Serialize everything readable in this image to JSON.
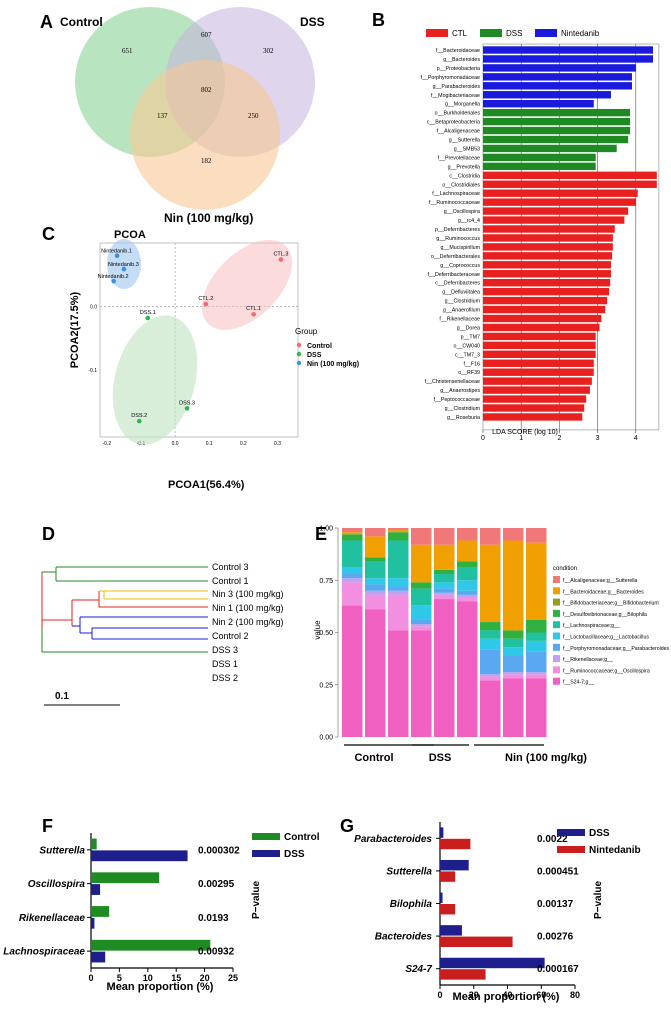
{
  "colors": {
    "ctl": "#e8201f",
    "dss": "#1f8a24",
    "nin": "#1a1adc",
    "ven_control": "#7ed08a",
    "ven_dss": "#c4b2dc",
    "ven_nin": "#f9c894",
    "pcoa_ctl": "#f26b6b",
    "pcoa_dss": "#2bb84a",
    "pcoa_nin": "#3a8fe8",
    "f_green": "#1e8c22",
    "f_navy": "#1e1e8c",
    "g_navy": "#1e1e8c",
    "g_red": "#c81e1e"
  },
  "panels": {
    "a": "A",
    "b": "B",
    "c": "C",
    "d": "D",
    "e": "E",
    "f": "F",
    "g": "G"
  },
  "chart_data": [
    {
      "type": "venn",
      "panel": "A",
      "sets": [
        "Control",
        "DSS",
        "Nin  (100 mg/kg)"
      ],
      "regions": {
        "control_only": "651",
        "control_dss": "607",
        "dss_only": "302",
        "all_three": "802",
        "control_nin": "137",
        "dss_nin": "250",
        "nin_only": "182"
      }
    },
    {
      "type": "bar",
      "panel": "B",
      "orientation": "horizontal",
      "legend": [
        "CTL",
        "DSS",
        "Nintedanib"
      ],
      "xlabel": "LDA SCORE (log 10)",
      "xlim": [
        0,
        4.5
      ],
      "xticks": [
        "0",
        "1",
        "2",
        "3",
        "4"
      ],
      "categories": [
        "f__Bacteroidaceae",
        "g__Bacteroides",
        "p__Proteobacteria",
        "f__Porphyromonadaceae",
        "g__Parabacteroides",
        "f__Mogibacteriaceae",
        "g__Morganella",
        "o__Burkholderiales",
        "c__Betaproteobacteria",
        "f__Alcaligenaceae",
        "g__Sutterella",
        "g__SMB53",
        "f__Prevotellaceae",
        "g__Prevotella",
        "c__Clostridia",
        "o__Clostridiales",
        "f__Lachnospiraceae",
        "f__Ruminococcaceae",
        "g__Oscillospira",
        "g__rc4_4",
        "p__Deferribacteres",
        "g__Ruminococcus",
        "g__Mucispirillum",
        "o__Deferribacterales",
        "g__Coprococcus",
        "f__Deferribacteraceae",
        "c__Deferribacteres",
        "g__Defluviitalea",
        "g__Clostridium",
        "g__Anaerofilum",
        "f__Rikenellaceae",
        "g__Dorea",
        "p__TM7",
        "o__CW040",
        "c__TM7_3",
        "f__F16",
        "o__RF39",
        "f__Christensenellaceae",
        "g__Anaerostipes",
        "f__Peptococcaceae",
        "g__Clostridium",
        "g__Roseburia"
      ],
      "values": [
        4.45,
        4.45,
        4.0,
        3.9,
        3.9,
        3.35,
        2.9,
        3.85,
        3.85,
        3.85,
        3.8,
        3.5,
        2.95,
        2.95,
        4.55,
        4.55,
        4.05,
        4.0,
        3.8,
        3.7,
        3.45,
        3.4,
        3.4,
        3.38,
        3.35,
        3.35,
        3.33,
        3.3,
        3.25,
        3.2,
        3.1,
        3.05,
        2.95,
        2.95,
        2.95,
        2.9,
        2.9,
        2.85,
        2.8,
        2.7,
        2.65,
        2.6
      ],
      "groups": [
        "Nintedanib",
        "Nintedanib",
        "Nintedanib",
        "Nintedanib",
        "Nintedanib",
        "Nintedanib",
        "Nintedanib",
        "DSS",
        "DSS",
        "DSS",
        "DSS",
        "DSS",
        "DSS",
        "DSS",
        "CTL",
        "CTL",
        "CTL",
        "CTL",
        "CTL",
        "CTL",
        "CTL",
        "CTL",
        "CTL",
        "CTL",
        "CTL",
        "CTL",
        "CTL",
        "CTL",
        "CTL",
        "CTL",
        "CTL",
        "CTL",
        "CTL",
        "CTL",
        "CTL",
        "CTL",
        "CTL",
        "CTL",
        "CTL",
        "CTL",
        "CTL",
        "CTL"
      ]
    },
    {
      "type": "scatter",
      "panel": "C",
      "title": "PCOA",
      "xlabel": "PCOA1(56.4%)",
      "ylabel": "PCOA2(17.5%)",
      "xlim": [
        -0.22,
        0.36
      ],
      "ylim": [
        -0.205,
        0.1
      ],
      "xticks": [
        -0.2,
        -0.1,
        0.0,
        0.1,
        0.2,
        0.3
      ],
      "xtick_labels": [
        "-0.2",
        "-0.1",
        "0.0",
        "0.1",
        "0.2",
        "0.3"
      ],
      "yticks": [
        0.0,
        -0.1
      ],
      "ytick_labels": [
        "0.0",
        "-0.1"
      ],
      "legend_title": "Group",
      "legend": [
        "Control",
        "DSS",
        "Nin  (100 mg/kg)"
      ],
      "points": [
        {
          "label": "CTL.3",
          "group": "Control",
          "x": 0.31,
          "y": 0.074
        },
        {
          "label": "CTL.2",
          "group": "Control",
          "x": 0.09,
          "y": 0.004
        },
        {
          "label": "CTL.1",
          "group": "Control",
          "x": 0.23,
          "y": -0.012
        },
        {
          "label": "DSS.1",
          "group": "DSS",
          "x": -0.08,
          "y": -0.018
        },
        {
          "label": "DSS.3",
          "group": "DSS",
          "x": 0.035,
          "y": -0.16
        },
        {
          "label": "DSS.2",
          "group": "DSS",
          "x": -0.105,
          "y": -0.18
        },
        {
          "label": "Nintedanib.1",
          "group": "Nin",
          "x": -0.17,
          "y": 0.08
        },
        {
          "label": "Nintedanib.3",
          "group": "Nin",
          "x": -0.15,
          "y": 0.059
        },
        {
          "label": "Nintedanib.2",
          "group": "Nin",
          "x": -0.18,
          "y": 0.04
        }
      ]
    },
    {
      "type": "dendrogram",
      "panel": "D",
      "leaves": [
        "Control 3",
        "Control 1",
        "Nin 3 (100 mg/kg)",
        "Nin 1 (100 mg/kg)",
        "Nin 2 (100 mg/kg)",
        "Control 2",
        "DSS 3",
        "DSS 1",
        "DSS 2"
      ],
      "scale_label": "0.1"
    },
    {
      "type": "stacked-bar",
      "panel": "E",
      "ylabel": "value",
      "yticks": [
        "0.00",
        "0.25",
        "0.50",
        "0.75",
        "1.00"
      ],
      "group_labels": [
        "Control",
        "DSS",
        "Nin (100 mg/kg)"
      ],
      "legend_title": "condition",
      "series": [
        {
          "name": "f__S24-7;g__",
          "color": "#f060c0",
          "values": [
            0.63,
            0.61,
            0.51,
            0.51,
            0.66,
            0.65,
            0.27,
            0.28,
            0.28
          ]
        },
        {
          "name": "f__Ruminococcaceae;g__Oscillospira",
          "color": "#f28fe0",
          "values": [
            0.11,
            0.07,
            0.17,
            0.02,
            0.02,
            0.02,
            0.02,
            0.02,
            0.02
          ]
        },
        {
          "name": "f__Rikenellaceae;g__",
          "color": "#c49ef0",
          "values": [
            0.02,
            0.02,
            0.02,
            0.01,
            0.01,
            0.01,
            0.01,
            0.01,
            0.01
          ]
        },
        {
          "name": "f__Porphyromonadaceae;g__Parabacteroides",
          "color": "#5aa8f0",
          "values": [
            0.02,
            0.03,
            0.02,
            0.02,
            0.02,
            0.02,
            0.12,
            0.08,
            0.1
          ]
        },
        {
          "name": "f__Lactobacillaceae;g__Lactobacillus",
          "color": "#30c8e8",
          "values": [
            0.03,
            0.03,
            0.04,
            0.07,
            0.03,
            0.05,
            0.05,
            0.04,
            0.05
          ]
        },
        {
          "name": "f__Lachnospiraceae;g__",
          "color": "#20c0a0",
          "values": [
            0.13,
            0.08,
            0.18,
            0.08,
            0.04,
            0.06,
            0.04,
            0.04,
            0.04
          ]
        },
        {
          "name": "f__Desulfovibrionaceae;g__Bilophila",
          "color": "#30b040",
          "values": [
            0.03,
            0.02,
            0.04,
            0.03,
            0.02,
            0.03,
            0.04,
            0.04,
            0.06
          ]
        },
        {
          "name": "f__Bifidobacteriaceae;g__Bifidobacterium",
          "color": "#90a020",
          "values": [
            0.0,
            0.0,
            0.0,
            0.0,
            0.0,
            0.0,
            0.0,
            0.0,
            0.0
          ]
        },
        {
          "name": "f__Bacteroidaceae;g__Bacteroides",
          "color": "#f0a000",
          "values": [
            0.01,
            0.1,
            0.01,
            0.18,
            0.12,
            0.1,
            0.37,
            0.43,
            0.37
          ]
        },
        {
          "name": "f__Alcaligenaceae;g__Sutterella",
          "color": "#f07878",
          "values": [
            0.02,
            0.04,
            0.01,
            0.08,
            0.08,
            0.06,
            0.08,
            0.06,
            0.07
          ]
        }
      ]
    },
    {
      "type": "bar",
      "panel": "F",
      "orientation": "horizontal",
      "xlabel": "Mean proportion (%)",
      "xlim": [
        0,
        25
      ],
      "xticks": [
        "0",
        "5",
        "10",
        "15",
        "20",
        "25"
      ],
      "legend": [
        "Control",
        "DSS"
      ],
      "p_label": "P−value",
      "categories": [
        "Sutterella",
        "Oscillospira",
        "Rikenellaceae",
        "Lachnospiraceae"
      ],
      "series": [
        {
          "name": "Control",
          "values": [
            1.0,
            12.0,
            3.2,
            21.0
          ]
        },
        {
          "name": "DSS",
          "values": [
            17.0,
            1.6,
            0.6,
            2.5
          ]
        }
      ],
      "pvalues": [
        "0.000302",
        "0.00295",
        "0.0193",
        "0.00932"
      ]
    },
    {
      "type": "bar",
      "panel": "G",
      "orientation": "horizontal",
      "xlabel": "Mean proportion (%)",
      "xlim": [
        0,
        80
      ],
      "xticks": [
        "0",
        "20",
        "40",
        "60",
        "80"
      ],
      "legend": [
        "DSS",
        "Nintedanib"
      ],
      "p_label": "P−value",
      "categories": [
        "Parabacteroides",
        "Sutterella",
        "Bilophila",
        "Bacteroides",
        "S24-7"
      ],
      "series": [
        {
          "name": "DSS",
          "values": [
            2.0,
            17.0,
            1.5,
            13.0,
            62.0
          ]
        },
        {
          "name": "Nintedanib",
          "values": [
            18.0,
            9.0,
            9.0,
            43.0,
            27.0
          ]
        }
      ],
      "pvalues": [
        "0.0022",
        "0.000451",
        "0.00137",
        "0.00276",
        "0.000167"
      ]
    }
  ]
}
